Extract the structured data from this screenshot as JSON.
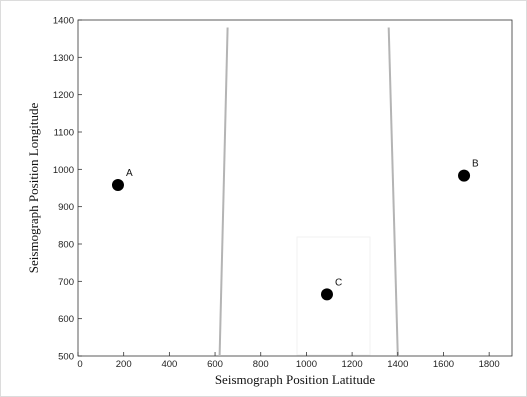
{
  "chart_data": {
    "type": "scatter",
    "title": "",
    "xlabel": "Seismograph Position Latitude",
    "ylabel": "Seismograph Position Longitude",
    "xlim": [
      0,
      1900
    ],
    "ylim": [
      500,
      1400
    ],
    "xticks": [
      0,
      200,
      400,
      600,
      800,
      1000,
      1200,
      1400,
      1600,
      1800
    ],
    "yticks": [
      500,
      600,
      700,
      800,
      900,
      1000,
      1100,
      1200,
      1300,
      1400
    ],
    "grid": false,
    "points": [
      {
        "label": "A",
        "x": 175,
        "y": 958
      },
      {
        "label": "B",
        "x": 1690,
        "y": 983
      },
      {
        "label": "C",
        "x": 1090,
        "y": 665
      }
    ],
    "lines": [
      {
        "name": "boundary-left",
        "x": [
          620,
          655
        ],
        "y": [
          500,
          1380
        ],
        "color": "#b4b4b4"
      },
      {
        "name": "boundary-right",
        "x": [
          1360,
          1400
        ],
        "y": [
          1380,
          500
        ],
        "color": "#b4b4b4"
      }
    ],
    "marker_color": "#000000"
  }
}
